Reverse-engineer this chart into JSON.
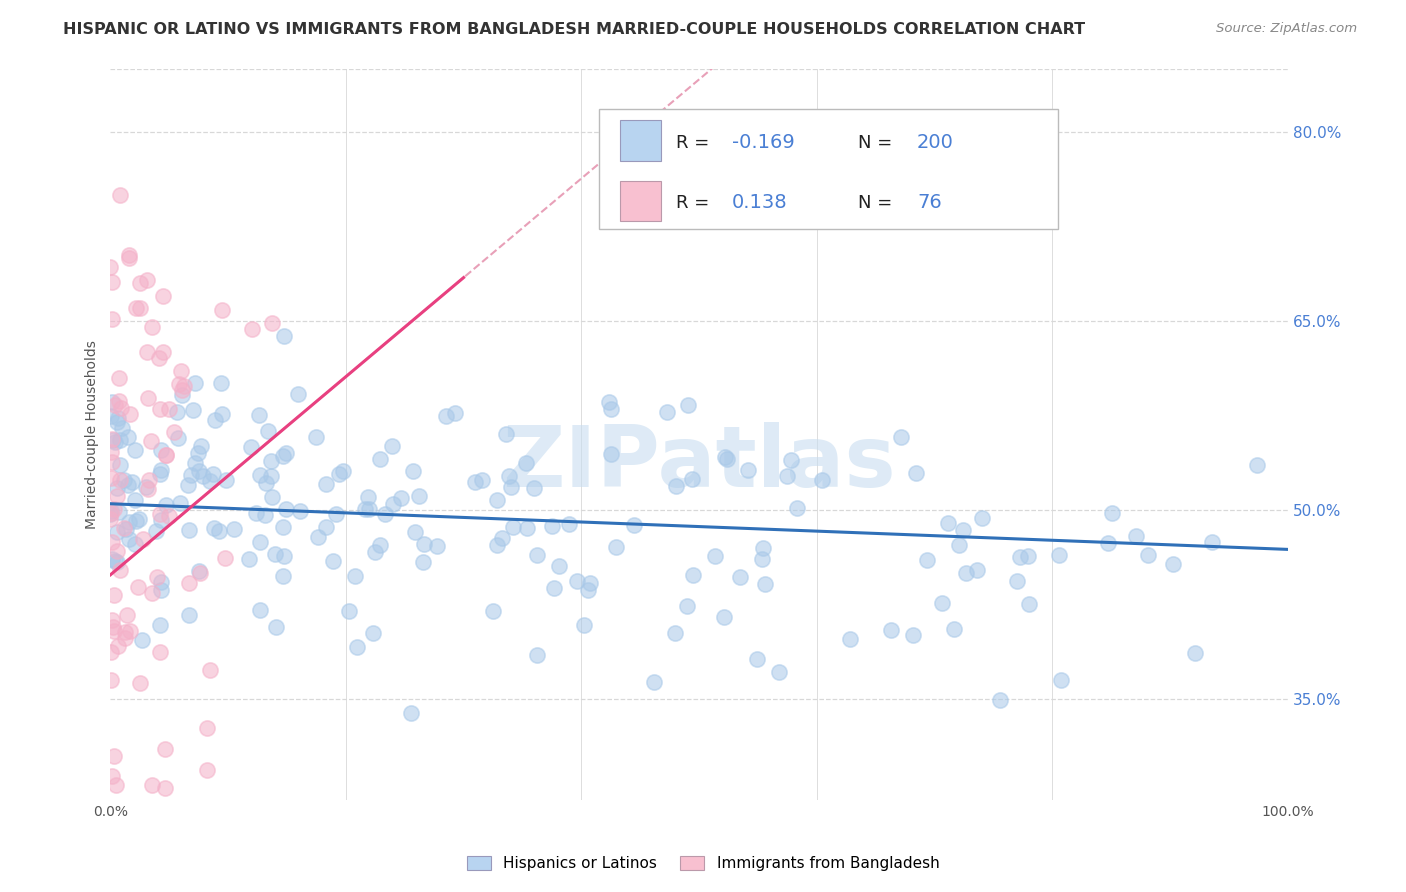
{
  "title": "HISPANIC OR LATINO VS IMMIGRANTS FROM BANGLADESH MARRIED-COUPLE HOUSEHOLDS CORRELATION CHART",
  "source": "Source: ZipAtlas.com",
  "ylabel": "Married-couple Households",
  "blue_R": -0.169,
  "blue_N": 200,
  "pink_R": 0.138,
  "pink_N": 76,
  "blue_color": "#a8c8e8",
  "pink_color": "#f4b0c8",
  "blue_line_color": "#3070b8",
  "pink_line_color": "#e84080",
  "pink_dash_color": "#e8a0b8",
  "legend_text_color": "#4a7fd4",
  "watermark_color": "#c8ddf0",
  "xlim": [
    0.0,
    1.0
  ],
  "ylim": [
    0.27,
    0.85
  ],
  "yticks": [
    0.35,
    0.5,
    0.65,
    0.8
  ],
  "ytick_labels": [
    "35.0%",
    "50.0%",
    "65.0%",
    "80.0%"
  ],
  "background_color": "#ffffff",
  "grid_color": "#d8d8d8",
  "title_fontsize": 11.5,
  "source_fontsize": 9.5,
  "scatter_size": 120,
  "scatter_alpha": 0.55,
  "scatter_lw": 1.2
}
